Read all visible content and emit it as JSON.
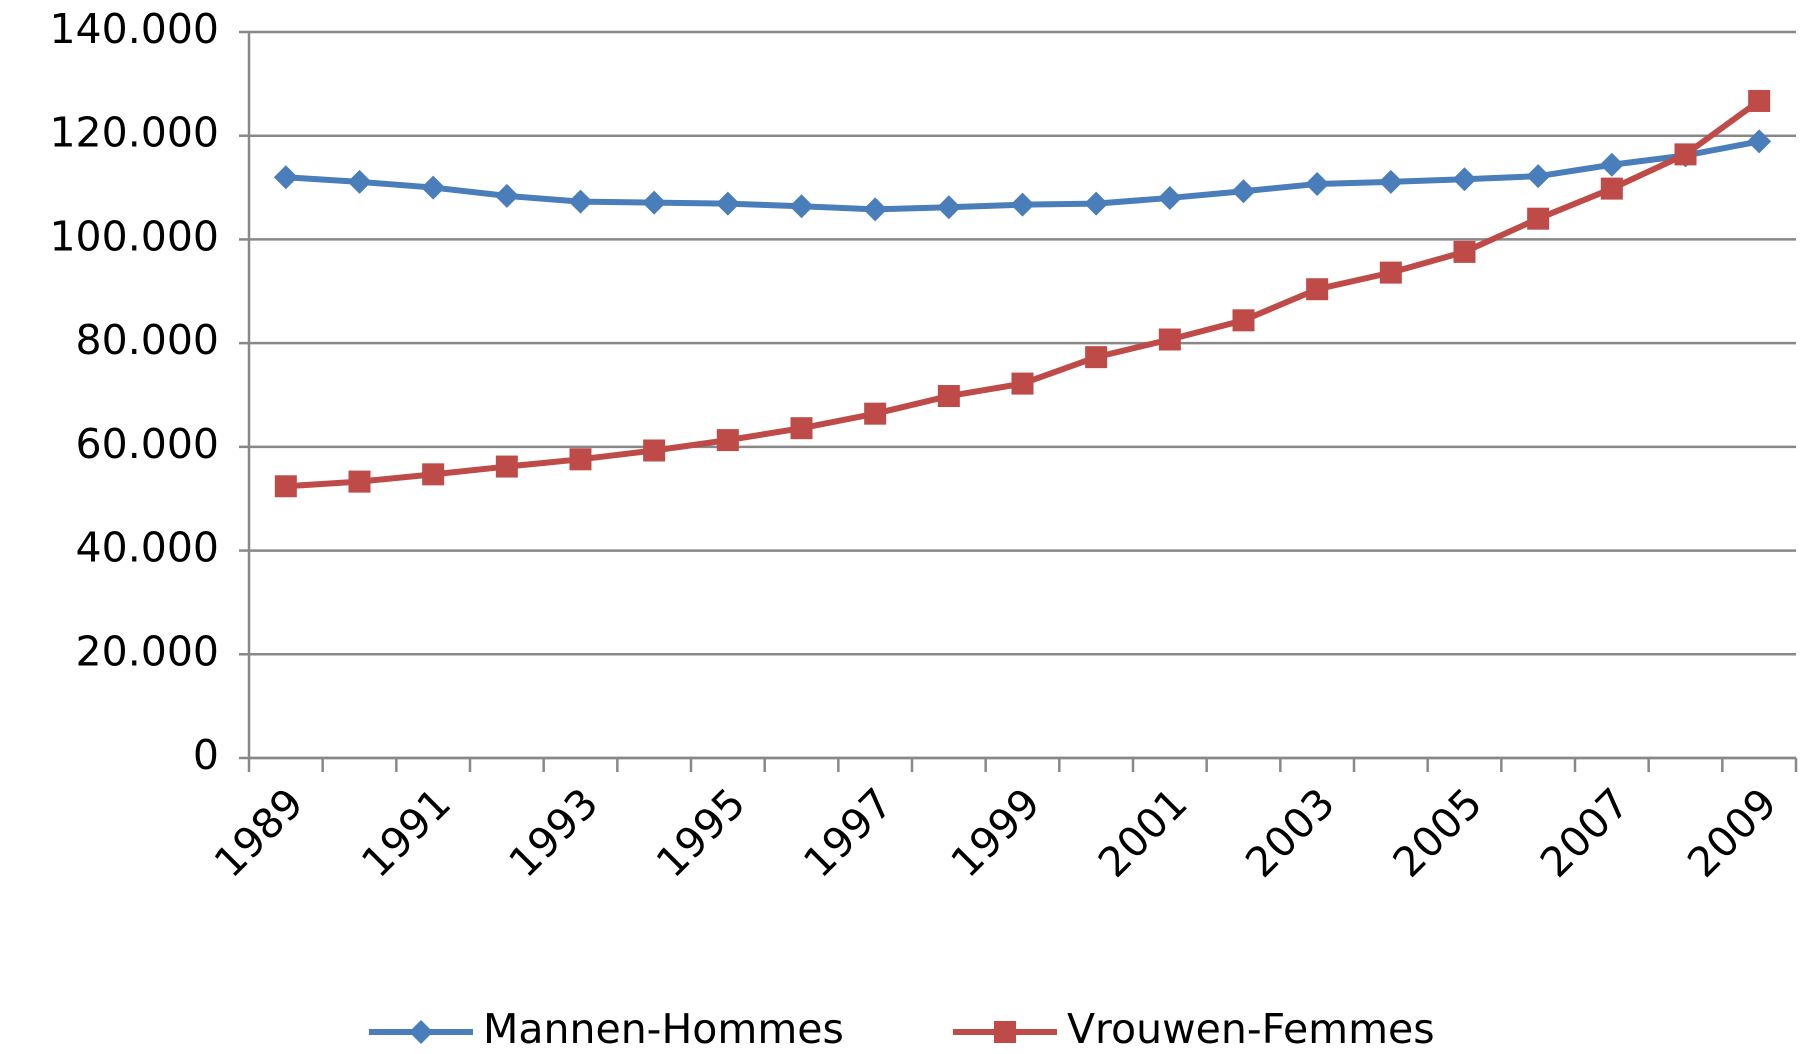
{
  "chart_data": {
    "type": "line",
    "categories": [
      "1989",
      null,
      "1991",
      null,
      "1993",
      null,
      "1995",
      null,
      "1997",
      null,
      "1999",
      null,
      "2001",
      null,
      "2003",
      null,
      "2005",
      null,
      "2007",
      null,
      "2009"
    ],
    "series": [
      {
        "name": "Mannen-Hommes",
        "color": "#4a7ebb",
        "marker": "diamond",
        "values": [
          112000,
          111100,
          110000,
          108400,
          107300,
          107100,
          106900,
          106400,
          105800,
          106200,
          106700,
          106900,
          108000,
          109300,
          110700,
          111100,
          111600,
          112200,
          114400,
          116200,
          118900
        ]
      },
      {
        "name": "Vrouwen-Femmes",
        "color": "#be4b48",
        "marker": "square",
        "values": [
          52400,
          53300,
          54700,
          56200,
          57600,
          59300,
          61300,
          63600,
          66400,
          69800,
          72200,
          77300,
          80700,
          84400,
          90400,
          93600,
          97600,
          104000,
          109800,
          116400,
          126700
        ]
      }
    ],
    "ylim": [
      0,
      140000
    ],
    "yticks": [
      0,
      {
        "value": 20000,
        "label": "20.000"
      },
      {
        "value": 40000,
        "label": "40.000"
      },
      {
        "value": 60000,
        "label": "60.000"
      },
      {
        "value": 80000,
        "label": "80.000"
      },
      {
        "value": 100000,
        "label": "100.000"
      },
      {
        "value": 120000,
        "label": "120.000"
      },
      {
        "value": 140000,
        "label": "140.000"
      }
    ],
    "grid": true,
    "legend": "bottom"
  }
}
